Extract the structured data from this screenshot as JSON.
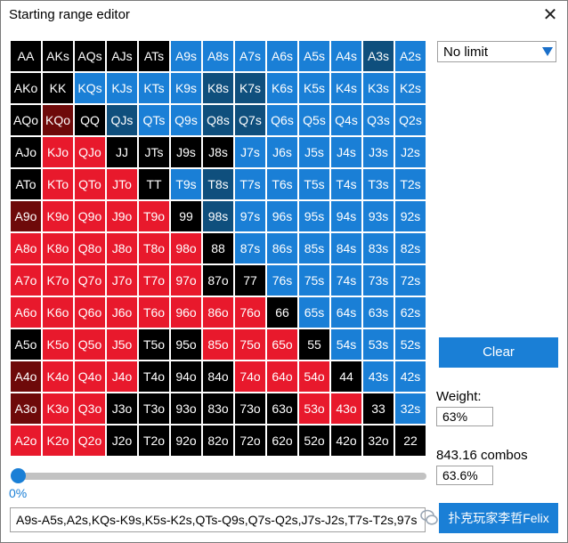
{
  "window": {
    "title": "Starting range editor",
    "close_glyph": "✕"
  },
  "mode_select": {
    "value": "No limit"
  },
  "buttons": {
    "clear": "Clear",
    "felix": "扑克玩家李哲Felix"
  },
  "weight": {
    "label": "Weight:",
    "value": "63%"
  },
  "combos": {
    "label": "843.16 combos",
    "value": "63.6%"
  },
  "slider": {
    "value": 0,
    "label": "0%"
  },
  "range_text": "A9s-A5s,A2s,KQs-K9s,K5s-K2s,QTs-Q9s,Q7s-Q2s,J7s-J2s,T7s-T2s,97s",
  "colors": {
    "black": "#000000",
    "blue": "#1a7fd6",
    "navy": "#0f4f7d",
    "red": "#e8192c",
    "darkred": "#6e0a0a"
  },
  "grid": {
    "rows": [
      [
        {
          "l": "AA",
          "c": "black"
        },
        {
          "l": "AKs",
          "c": "black"
        },
        {
          "l": "AQs",
          "c": "black"
        },
        {
          "l": "AJs",
          "c": "black"
        },
        {
          "l": "ATs",
          "c": "black"
        },
        {
          "l": "A9s",
          "c": "blue"
        },
        {
          "l": "A8s",
          "c": "blue"
        },
        {
          "l": "A7s",
          "c": "blue"
        },
        {
          "l": "A6s",
          "c": "blue"
        },
        {
          "l": "A5s",
          "c": "blue"
        },
        {
          "l": "A4s",
          "c": "blue"
        },
        {
          "l": "A3s",
          "c": "navy"
        },
        {
          "l": "A2s",
          "c": "blue"
        }
      ],
      [
        {
          "l": "AKo",
          "c": "black"
        },
        {
          "l": "KK",
          "c": "black"
        },
        {
          "l": "KQs",
          "c": "blue"
        },
        {
          "l": "KJs",
          "c": "blue"
        },
        {
          "l": "KTs",
          "c": "blue"
        },
        {
          "l": "K9s",
          "c": "blue"
        },
        {
          "l": "K8s",
          "c": "navy"
        },
        {
          "l": "K7s",
          "c": "navy"
        },
        {
          "l": "K6s",
          "c": "blue"
        },
        {
          "l": "K5s",
          "c": "blue"
        },
        {
          "l": "K4s",
          "c": "blue"
        },
        {
          "l": "K3s",
          "c": "blue"
        },
        {
          "l": "K2s",
          "c": "blue"
        }
      ],
      [
        {
          "l": "AQo",
          "c": "black"
        },
        {
          "l": "KQo",
          "c": "darkred"
        },
        {
          "l": "QQ",
          "c": "black"
        },
        {
          "l": "QJs",
          "c": "navy"
        },
        {
          "l": "QTs",
          "c": "blue"
        },
        {
          "l": "Q9s",
          "c": "blue"
        },
        {
          "l": "Q8s",
          "c": "navy"
        },
        {
          "l": "Q7s",
          "c": "navy"
        },
        {
          "l": "Q6s",
          "c": "blue"
        },
        {
          "l": "Q5s",
          "c": "blue"
        },
        {
          "l": "Q4s",
          "c": "blue"
        },
        {
          "l": "Q3s",
          "c": "blue"
        },
        {
          "l": "Q2s",
          "c": "blue"
        }
      ],
      [
        {
          "l": "AJo",
          "c": "black"
        },
        {
          "l": "KJo",
          "c": "red"
        },
        {
          "l": "QJo",
          "c": "red"
        },
        {
          "l": "JJ",
          "c": "black"
        },
        {
          "l": "JTs",
          "c": "black"
        },
        {
          "l": "J9s",
          "c": "black"
        },
        {
          "l": "J8s",
          "c": "black"
        },
        {
          "l": "J7s",
          "c": "blue"
        },
        {
          "l": "J6s",
          "c": "blue"
        },
        {
          "l": "J5s",
          "c": "blue"
        },
        {
          "l": "J4s",
          "c": "blue"
        },
        {
          "l": "J3s",
          "c": "blue"
        },
        {
          "l": "J2s",
          "c": "blue"
        }
      ],
      [
        {
          "l": "ATo",
          "c": "black"
        },
        {
          "l": "KTo",
          "c": "red"
        },
        {
          "l": "QTo",
          "c": "red"
        },
        {
          "l": "JTo",
          "c": "red"
        },
        {
          "l": "TT",
          "c": "black"
        },
        {
          "l": "T9s",
          "c": "blue"
        },
        {
          "l": "T8s",
          "c": "navy"
        },
        {
          "l": "T7s",
          "c": "blue"
        },
        {
          "l": "T6s",
          "c": "blue"
        },
        {
          "l": "T5s",
          "c": "blue"
        },
        {
          "l": "T4s",
          "c": "blue"
        },
        {
          "l": "T3s",
          "c": "blue"
        },
        {
          "l": "T2s",
          "c": "blue"
        }
      ],
      [
        {
          "l": "A9o",
          "c": "darkred"
        },
        {
          "l": "K9o",
          "c": "red"
        },
        {
          "l": "Q9o",
          "c": "red"
        },
        {
          "l": "J9o",
          "c": "red"
        },
        {
          "l": "T9o",
          "c": "red"
        },
        {
          "l": "99",
          "c": "black"
        },
        {
          "l": "98s",
          "c": "navy"
        },
        {
          "l": "97s",
          "c": "blue"
        },
        {
          "l": "96s",
          "c": "blue"
        },
        {
          "l": "95s",
          "c": "blue"
        },
        {
          "l": "94s",
          "c": "blue"
        },
        {
          "l": "93s",
          "c": "blue"
        },
        {
          "l": "92s",
          "c": "blue"
        }
      ],
      [
        {
          "l": "A8o",
          "c": "red"
        },
        {
          "l": "K8o",
          "c": "red"
        },
        {
          "l": "Q8o",
          "c": "red"
        },
        {
          "l": "J8o",
          "c": "red"
        },
        {
          "l": "T8o",
          "c": "red"
        },
        {
          "l": "98o",
          "c": "red"
        },
        {
          "l": "88",
          "c": "black"
        },
        {
          "l": "87s",
          "c": "blue"
        },
        {
          "l": "86s",
          "c": "blue"
        },
        {
          "l": "85s",
          "c": "blue"
        },
        {
          "l": "84s",
          "c": "blue"
        },
        {
          "l": "83s",
          "c": "blue"
        },
        {
          "l": "82s",
          "c": "blue"
        }
      ],
      [
        {
          "l": "A7o",
          "c": "red"
        },
        {
          "l": "K7o",
          "c": "red"
        },
        {
          "l": "Q7o",
          "c": "red"
        },
        {
          "l": "J7o",
          "c": "red"
        },
        {
          "l": "T7o",
          "c": "red"
        },
        {
          "l": "97o",
          "c": "red"
        },
        {
          "l": "87o",
          "c": "black"
        },
        {
          "l": "77",
          "c": "black"
        },
        {
          "l": "76s",
          "c": "blue"
        },
        {
          "l": "75s",
          "c": "blue"
        },
        {
          "l": "74s",
          "c": "blue"
        },
        {
          "l": "73s",
          "c": "blue"
        },
        {
          "l": "72s",
          "c": "blue"
        }
      ],
      [
        {
          "l": "A6o",
          "c": "red"
        },
        {
          "l": "K6o",
          "c": "red"
        },
        {
          "l": "Q6o",
          "c": "red"
        },
        {
          "l": "J6o",
          "c": "red"
        },
        {
          "l": "T6o",
          "c": "red"
        },
        {
          "l": "96o",
          "c": "red"
        },
        {
          "l": "86o",
          "c": "red"
        },
        {
          "l": "76o",
          "c": "red"
        },
        {
          "l": "66",
          "c": "black"
        },
        {
          "l": "65s",
          "c": "blue"
        },
        {
          "l": "64s",
          "c": "blue"
        },
        {
          "l": "63s",
          "c": "blue"
        },
        {
          "l": "62s",
          "c": "blue"
        }
      ],
      [
        {
          "l": "A5o",
          "c": "black"
        },
        {
          "l": "K5o",
          "c": "red"
        },
        {
          "l": "Q5o",
          "c": "red"
        },
        {
          "l": "J5o",
          "c": "red"
        },
        {
          "l": "T5o",
          "c": "black"
        },
        {
          "l": "95o",
          "c": "black"
        },
        {
          "l": "85o",
          "c": "red"
        },
        {
          "l": "75o",
          "c": "red"
        },
        {
          "l": "65o",
          "c": "red"
        },
        {
          "l": "55",
          "c": "black"
        },
        {
          "l": "54s",
          "c": "blue"
        },
        {
          "l": "53s",
          "c": "blue"
        },
        {
          "l": "52s",
          "c": "blue"
        }
      ],
      [
        {
          "l": "A4o",
          "c": "darkred"
        },
        {
          "l": "K4o",
          "c": "red"
        },
        {
          "l": "Q4o",
          "c": "red"
        },
        {
          "l": "J4o",
          "c": "red"
        },
        {
          "l": "T4o",
          "c": "black"
        },
        {
          "l": "94o",
          "c": "black"
        },
        {
          "l": "84o",
          "c": "black"
        },
        {
          "l": "74o",
          "c": "red"
        },
        {
          "l": "64o",
          "c": "red"
        },
        {
          "l": "54o",
          "c": "red"
        },
        {
          "l": "44",
          "c": "black"
        },
        {
          "l": "43s",
          "c": "blue"
        },
        {
          "l": "42s",
          "c": "blue"
        }
      ],
      [
        {
          "l": "A3o",
          "c": "darkred"
        },
        {
          "l": "K3o",
          "c": "red"
        },
        {
          "l": "Q3o",
          "c": "red"
        },
        {
          "l": "J3o",
          "c": "black"
        },
        {
          "l": "T3o",
          "c": "black"
        },
        {
          "l": "93o",
          "c": "black"
        },
        {
          "l": "83o",
          "c": "black"
        },
        {
          "l": "73o",
          "c": "black"
        },
        {
          "l": "63o",
          "c": "black"
        },
        {
          "l": "53o",
          "c": "red"
        },
        {
          "l": "43o",
          "c": "red"
        },
        {
          "l": "33",
          "c": "black"
        },
        {
          "l": "32s",
          "c": "blue"
        }
      ],
      [
        {
          "l": "A2o",
          "c": "red"
        },
        {
          "l": "K2o",
          "c": "red"
        },
        {
          "l": "Q2o",
          "c": "red"
        },
        {
          "l": "J2o",
          "c": "black"
        },
        {
          "l": "T2o",
          "c": "black"
        },
        {
          "l": "92o",
          "c": "black"
        },
        {
          "l": "82o",
          "c": "black"
        },
        {
          "l": "72o",
          "c": "black"
        },
        {
          "l": "62o",
          "c": "black"
        },
        {
          "l": "52o",
          "c": "black"
        },
        {
          "l": "42o",
          "c": "black"
        },
        {
          "l": "32o",
          "c": "black"
        },
        {
          "l": "22",
          "c": "black"
        }
      ]
    ]
  }
}
